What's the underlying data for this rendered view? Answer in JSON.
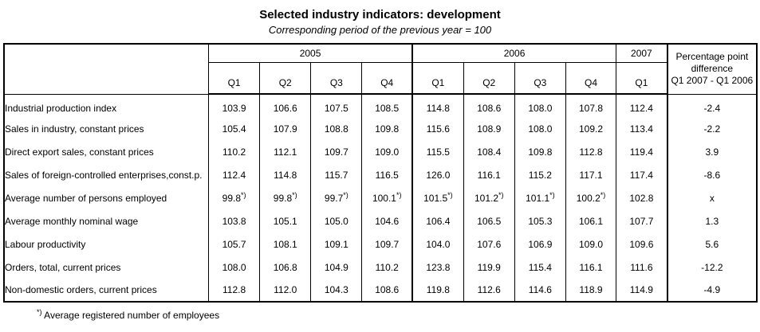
{
  "title": "Selected industry indicators: development",
  "subtitle": "Corresponding period of the previous year = 100",
  "table": {
    "year_groups": [
      {
        "label": "2005",
        "quarters": [
          "Q1",
          "Q2",
          "Q3",
          "Q4"
        ]
      },
      {
        "label": "2006",
        "quarters": [
          "Q1",
          "Q2",
          "Q3",
          "Q4"
        ]
      },
      {
        "label": "2007",
        "quarters": [
          "Q1"
        ]
      }
    ],
    "diff_header_lines": [
      "Percentage point",
      "difference",
      "Q1 2007 - Q1 2006"
    ],
    "rows": [
      {
        "label": "Industrial production index",
        "values": [
          "103.9",
          "106.6",
          "107.5",
          "108.5",
          "114.8",
          "108.6",
          "108.0",
          "107.8",
          "112.4"
        ],
        "diff": "-2.4"
      },
      {
        "label": "Sales in industry, constant prices",
        "values": [
          "105.4",
          "107.9",
          "108.8",
          "109.8",
          "115.6",
          "108.9",
          "108.0",
          "109.2",
          "113.4"
        ],
        "diff": "-2.2"
      },
      {
        "label": "Direct export sales, constant prices",
        "values": [
          "110.2",
          "112.1",
          "109.7",
          "109.0",
          "115.5",
          "108.4",
          "109.8",
          "112.8",
          "119.4"
        ],
        "diff": "3.9"
      },
      {
        "label": "Sales of foreign-controlled enterprises,const.p.",
        "values": [
          "112.4",
          "114.8",
          "115.7",
          "116.5",
          "126.0",
          "116.1",
          "115.2",
          "117.1",
          "117.4"
        ],
        "diff": "-8.6"
      },
      {
        "label": "Average number of persons employed",
        "values": [
          "99.8*)",
          "99.8*)",
          "99.7*)",
          "100.1*)",
          "101.5*)",
          "101.2*)",
          "101.1*)",
          "100.2*)",
          "102.8"
        ],
        "diff": "x"
      },
      {
        "label": "Average monthly nominal wage",
        "values": [
          "103.8",
          "105.1",
          "105.0",
          "104.6",
          "106.4",
          "106.5",
          "105.3",
          "106.1",
          "107.7"
        ],
        "diff": "1.3"
      },
      {
        "label": "Labour productivity",
        "values": [
          "105.7",
          "108.1",
          "109.1",
          "109.7",
          "104.0",
          "107.6",
          "106.9",
          "109.0",
          "109.6"
        ],
        "diff": "5.6"
      },
      {
        "label": "Orders, total, current prices",
        "values": [
          "108.0",
          "106.8",
          "104.9",
          "110.2",
          "123.8",
          "119.9",
          "115.4",
          "116.1",
          "111.6"
        ],
        "diff": "-12.2"
      },
      {
        "label": "Non-domestic orders, current prices",
        "values": [
          "112.8",
          "112.0",
          "104.3",
          "108.6",
          "119.8",
          "112.6",
          "114.6",
          "118.9",
          "114.9"
        ],
        "diff": "-4.9"
      }
    ]
  },
  "footnote": {
    "marker": "*)",
    "text": "Average registered number of employees"
  },
  "colors": {
    "border": "#000000",
    "text": "#000000",
    "background": "#ffffff"
  }
}
